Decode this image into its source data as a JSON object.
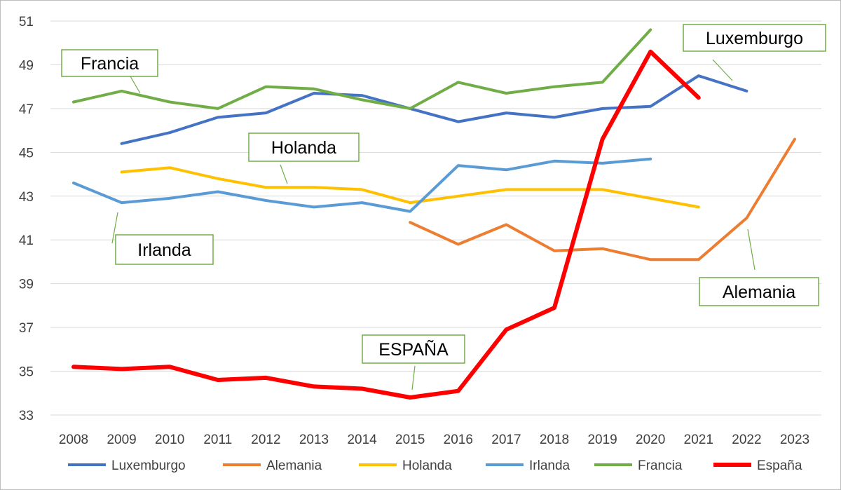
{
  "chart_data": {
    "type": "line",
    "title": "",
    "xlabel": "",
    "ylabel": "",
    "ylim": [
      33,
      51
    ],
    "yticks": [
      33,
      35,
      37,
      39,
      41,
      43,
      45,
      47,
      49,
      51
    ],
    "grid": true,
    "legend_position": "bottom",
    "categories": [
      "2008",
      "2009",
      "2010",
      "2011",
      "2012",
      "2013",
      "2014",
      "2015",
      "2016",
      "2017",
      "2018",
      "2019",
      "2020",
      "2021",
      "2022",
      "2023"
    ],
    "series": [
      {
        "name": "Luxemburgo",
        "color": "#4472c4",
        "width": 4,
        "values": [
          null,
          45.4,
          45.9,
          46.6,
          46.8,
          47.7,
          47.6,
          47.0,
          46.4,
          46.8,
          46.6,
          47.0,
          47.1,
          48.5,
          47.8,
          null
        ]
      },
      {
        "name": "Alemania",
        "color": "#ed7d31",
        "width": 4,
        "values": [
          null,
          null,
          null,
          null,
          null,
          null,
          null,
          41.8,
          40.8,
          41.7,
          40.5,
          40.6,
          40.1,
          40.1,
          42.0,
          45.6
        ]
      },
      {
        "name": "Holanda",
        "color": "#ffc000",
        "width": 4,
        "values": [
          null,
          44.1,
          44.3,
          43.8,
          43.4,
          43.4,
          43.3,
          42.7,
          43.0,
          43.3,
          43.3,
          43.3,
          42.9,
          42.5,
          null,
          null
        ]
      },
      {
        "name": "Irlanda",
        "color": "#5b9bd5",
        "width": 4,
        "values": [
          43.6,
          42.7,
          42.9,
          43.2,
          42.8,
          42.5,
          42.7,
          42.3,
          44.4,
          44.2,
          44.6,
          44.5,
          44.7,
          null,
          null,
          null
        ]
      },
      {
        "name": "Francia",
        "color": "#70ad47",
        "width": 4,
        "values": [
          47.3,
          47.8,
          47.3,
          47.0,
          48.0,
          47.9,
          47.4,
          47.0,
          48.2,
          47.7,
          48.0,
          48.2,
          50.6,
          null,
          null,
          null
        ]
      },
      {
        "name": "España",
        "color": "#ff0000",
        "width": 6,
        "values": [
          35.2,
          35.1,
          35.2,
          34.6,
          34.7,
          34.3,
          34.2,
          33.8,
          34.1,
          36.9,
          37.9,
          45.6,
          49.6,
          47.5,
          null,
          null
        ]
      }
    ],
    "annotations": [
      {
        "text": "Francia",
        "series": "Francia"
      },
      {
        "text": "Luxemburgo",
        "series": "Luxemburgo"
      },
      {
        "text": "Holanda",
        "series": "Holanda"
      },
      {
        "text": "Irlanda",
        "series": "Irlanda"
      },
      {
        "text": "Alemania",
        "series": "Alemania"
      },
      {
        "text": "ESPAÑA",
        "series": "España"
      }
    ]
  }
}
